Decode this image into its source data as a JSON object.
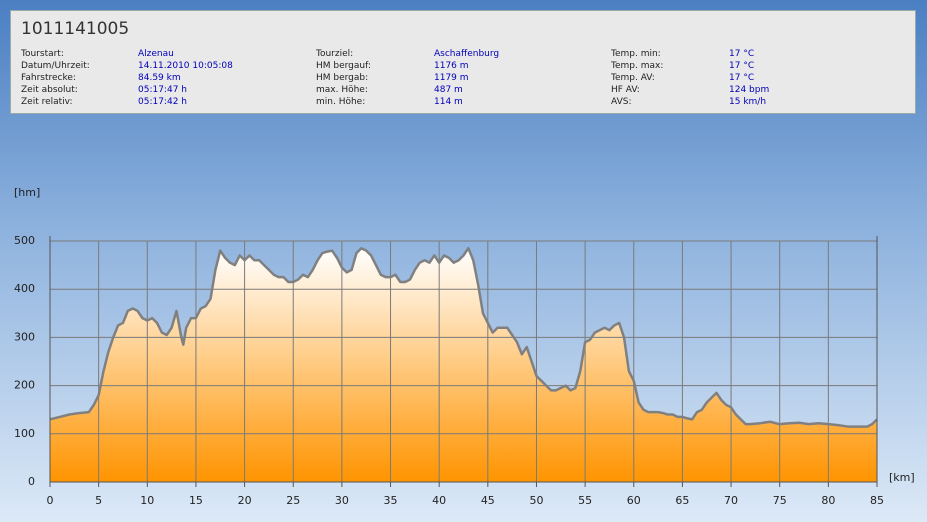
{
  "header": {
    "title": "1011141005",
    "columns": [
      [
        {
          "label": "Tourstart:",
          "value": "Alzenau"
        },
        {
          "label": "Datum/Uhrzeit:",
          "value": "14.11.2010 10:05:08"
        },
        {
          "label": "Fahrstrecke:",
          "value": "84.59 km"
        },
        {
          "label": "Zeit absolut:",
          "value": "05:17:47 h"
        },
        {
          "label": "Zeit relativ:",
          "value": "05:17:42 h"
        }
      ],
      [
        {
          "label": "Tourziel:",
          "value": "Aschaffenburg"
        },
        {
          "label": "HM bergauf:",
          "value": "1176 m"
        },
        {
          "label": "HM bergab:",
          "value": "1179 m"
        },
        {
          "label": "max. Höhe:",
          "value": "487 m"
        },
        {
          "label": "min. Höhe:",
          "value": "114 m"
        }
      ],
      [
        {
          "label": "Temp. min:",
          "value": "17 °C"
        },
        {
          "label": "Temp. max:",
          "value": "17 °C"
        },
        {
          "label": "Temp. AV:",
          "value": "17 °C"
        },
        {
          "label": "HF AV:",
          "value": "124 bpm"
        },
        {
          "label": "AVS:",
          "value": "15 km/h"
        }
      ]
    ]
  },
  "chart_data": {
    "type": "area",
    "x_label": "[km]",
    "y_label": "[hm]",
    "x": [
      0,
      1,
      2,
      3,
      4,
      4.5,
      5,
      5.5,
      6,
      6.5,
      7,
      7.5,
      8,
      8.5,
      9,
      9.5,
      10,
      10.5,
      11,
      11.5,
      12,
      12.5,
      13,
      13.5,
      13.7,
      14,
      14.5,
      15,
      15.5,
      16,
      16.5,
      17,
      17.5,
      18,
      18.5,
      19,
      19.5,
      20,
      20.5,
      21,
      21.5,
      22,
      22.5,
      23,
      23.5,
      24,
      24.5,
      25,
      25.5,
      26,
      26.5,
      27,
      27.5,
      28,
      28.5,
      29,
      29.5,
      30,
      30.5,
      31,
      31.5,
      32,
      32.5,
      33,
      33.5,
      34,
      34.5,
      35,
      35.5,
      36,
      36.5,
      37,
      37.5,
      38,
      38.5,
      39,
      39.5,
      40,
      40.5,
      41,
      41.5,
      42,
      42.5,
      43,
      43.5,
      44,
      44.5,
      45,
      45.5,
      46,
      46.5,
      47,
      47.5,
      48,
      48.5,
      49,
      49.5,
      50,
      50.5,
      51,
      51.5,
      52,
      52.5,
      53,
      53.5,
      54,
      54.5,
      55,
      55.5,
      56,
      56.5,
      57,
      57.5,
      58,
      58.5,
      59,
      59.5,
      60,
      60.5,
      61,
      61.5,
      62,
      62.5,
      63,
      63.5,
      64,
      64.5,
      65,
      65.5,
      66,
      66.5,
      67,
      67.5,
      68,
      68.5,
      69,
      69.5,
      70,
      70.5,
      71,
      71.5,
      72,
      73,
      74,
      75,
      76,
      77,
      78,
      79,
      80,
      81,
      82,
      83,
      84,
      84.5,
      85
    ],
    "values": [
      130,
      135,
      140,
      143,
      145,
      160,
      180,
      230,
      270,
      300,
      325,
      330,
      355,
      360,
      355,
      340,
      335,
      340,
      330,
      310,
      305,
      320,
      355,
      300,
      285,
      320,
      340,
      340,
      360,
      365,
      380,
      440,
      480,
      465,
      455,
      450,
      470,
      460,
      470,
      460,
      460,
      450,
      440,
      430,
      425,
      425,
      415,
      415,
      420,
      430,
      425,
      440,
      460,
      475,
      478,
      480,
      465,
      445,
      435,
      440,
      475,
      485,
      480,
      470,
      450,
      430,
      425,
      425,
      430,
      415,
      415,
      420,
      440,
      455,
      460,
      455,
      470,
      455,
      470,
      465,
      455,
      460,
      470,
      485,
      460,
      410,
      350,
      330,
      310,
      320,
      320,
      320,
      305,
      290,
      265,
      280,
      250,
      220,
      210,
      200,
      190,
      190,
      195,
      200,
      190,
      195,
      230,
      290,
      295,
      310,
      315,
      320,
      315,
      325,
      330,
      300,
      230,
      210,
      165,
      150,
      145,
      145,
      145,
      143,
      140,
      140,
      135,
      135,
      132,
      130,
      145,
      150,
      165,
      175,
      185,
      170,
      160,
      155,
      140,
      130,
      120,
      120,
      122,
      125,
      120,
      122,
      123,
      120,
      122,
      120,
      118,
      115,
      115,
      115,
      120,
      130
    ],
    "xlim": [
      0,
      85
    ],
    "ylim": [
      0,
      500
    ],
    "xticks": [
      0,
      5,
      10,
      15,
      20,
      25,
      30,
      35,
      40,
      45,
      50,
      55,
      60,
      65,
      70,
      75,
      80,
      85
    ],
    "yticks": [
      0,
      100,
      200,
      300,
      400,
      500
    ],
    "grid": true,
    "color": "#ff9400",
    "line_color": "#808080"
  }
}
